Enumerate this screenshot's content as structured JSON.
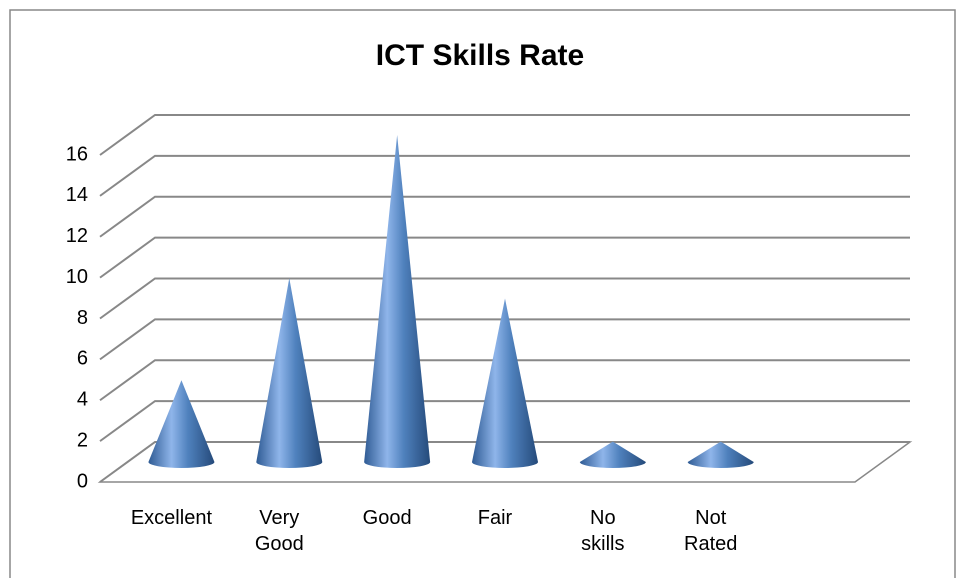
{
  "chart_data": {
    "type": "cone",
    "title": "ICT Skills Rate",
    "categories": [
      "Excellent",
      "Very Good",
      "Good",
      "Fair",
      "No skills",
      "Not Rated"
    ],
    "values": [
      4,
      9,
      16,
      8,
      1,
      1
    ],
    "color": "#4f81bd",
    "ylim": [
      0,
      16
    ],
    "yticks": [
      0,
      2,
      4,
      6,
      8,
      10,
      12,
      14,
      16
    ],
    "grid": true
  }
}
